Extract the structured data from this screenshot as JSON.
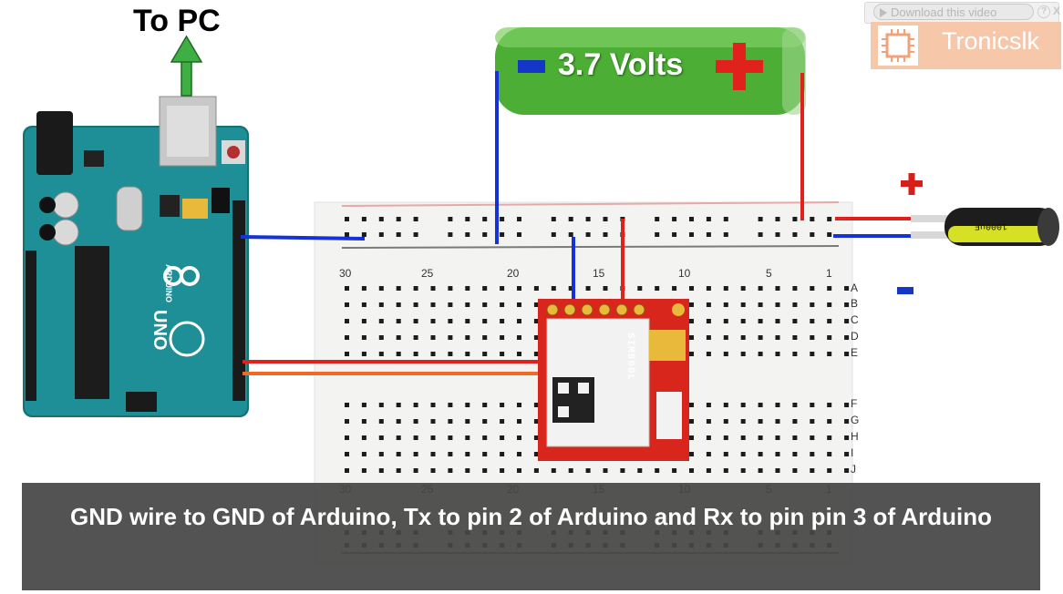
{
  "heading": "To PC",
  "battery": {
    "label": "3.7 Volts"
  },
  "overlay": {
    "download_label": "Download this video",
    "help_label": "?",
    "close_label": "X",
    "logo_text": "Tronicslk"
  },
  "module": {
    "label": "SIM800L"
  },
  "capacitor": {
    "label": "1000uF"
  },
  "board": {
    "model": "UNO",
    "brand": "ARDUINO"
  },
  "breadboard": {
    "columns_top": [
      "30",
      "25",
      "20",
      "15",
      "10",
      "5",
      "1"
    ],
    "columns_bottom": [
      "30",
      "25",
      "20",
      "15",
      "10",
      "5",
      "1"
    ],
    "rows": [
      "A",
      "B",
      "C",
      "D",
      "E",
      "F",
      "G",
      "H",
      "I",
      "J"
    ]
  },
  "subtitle": "GND wire to GND of Arduino, Tx to pin 2 of Arduino and Rx to pin pin 3 of Arduino",
  "colors": {
    "board": "#1e8f96",
    "battery": "#4cae35",
    "module": "#d8261c",
    "wire_blue": "#1531d9",
    "wire_red": "#e1221c",
    "wire_orange": "#f06a25",
    "arrow": "#3fae44"
  }
}
